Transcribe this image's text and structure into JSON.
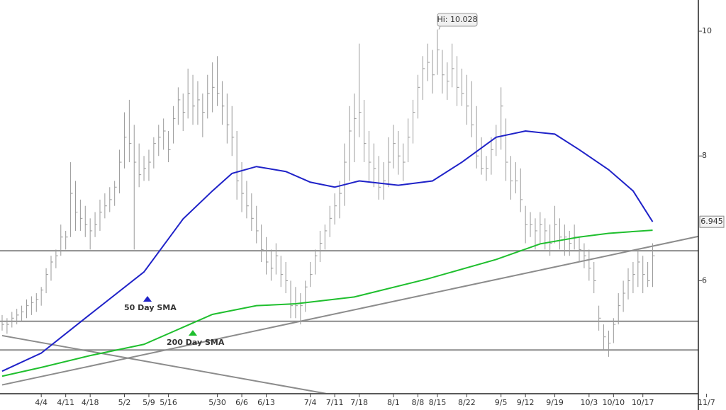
{
  "chart_data": {
    "type": "ohlc",
    "ylim": [
      4.2,
      10.5
    ],
    "yticks": [
      6,
      8,
      10
    ],
    "xlim": [
      0,
      148
    ],
    "xticks": [
      {
        "value": 8,
        "label": "4/4"
      },
      {
        "value": 13,
        "label": "4/11"
      },
      {
        "value": 18,
        "label": "4/18"
      },
      {
        "value": 25,
        "label": "5/2"
      },
      {
        "value": 30,
        "label": "5/9"
      },
      {
        "value": 34,
        "label": "5/16"
      },
      {
        "value": 44,
        "label": "5/30"
      },
      {
        "value": 49,
        "label": "6/6"
      },
      {
        "value": 54,
        "label": "6/13"
      },
      {
        "value": 63,
        "label": "7/4"
      },
      {
        "value": 68,
        "label": "7/11"
      },
      {
        "value": 73,
        "label": "7/18"
      },
      {
        "value": 80,
        "label": "8/1"
      },
      {
        "value": 85,
        "label": "8/8"
      },
      {
        "value": 89,
        "label": "8/15"
      },
      {
        "value": 95,
        "label": "8/22"
      },
      {
        "value": 102,
        "label": "9/5"
      },
      {
        "value": 107,
        "label": "9/12"
      },
      {
        "value": 113,
        "label": "9/19"
      },
      {
        "value": 120,
        "label": "10/3"
      },
      {
        "value": 125,
        "label": "10/10"
      },
      {
        "value": 131,
        "label": "10/17"
      },
      {
        "value": 144,
        "label": "11/7"
      }
    ],
    "bar_color": "#9a9a9a",
    "high": [
      5.45,
      5.4,
      5.5,
      5.55,
      5.6,
      5.7,
      5.75,
      5.8,
      5.9,
      6.2,
      6.4,
      6.5,
      6.9,
      6.8,
      7.9,
      7.6,
      7.3,
      7.2,
      7.0,
      7.1,
      7.3,
      7.4,
      7.5,
      7.6,
      8.1,
      8.7,
      8.9,
      8.5,
      8.2,
      8.0,
      8.1,
      8.3,
      8.5,
      8.6,
      8.4,
      8.8,
      9.1,
      9.0,
      9.4,
      9.3,
      9.2,
      9.0,
      9.3,
      9.5,
      9.6,
      9.2,
      9.0,
      8.8,
      8.4,
      7.9,
      7.6,
      7.4,
      7.2,
      6.9,
      6.7,
      6.5,
      6.6,
      6.4,
      6.3,
      6.0,
      5.9,
      5.8,
      6.0,
      6.3,
      6.5,
      6.8,
      6.9,
      7.2,
      7.4,
      7.6,
      8.2,
      8.8,
      9.0,
      9.8,
      8.9,
      8.4,
      8.2,
      8.0,
      7.9,
      8.3,
      8.5,
      8.4,
      8.2,
      8.6,
      8.9,
      9.3,
      9.6,
      9.8,
      9.7,
      10.028,
      9.7,
      9.5,
      9.8,
      9.6,
      9.4,
      9.3,
      9.2,
      8.8,
      8.3,
      8.0,
      8.3,
      8.5,
      9.1,
      8.6,
      8.0,
      7.9,
      7.8,
      7.2,
      7.1,
      7.0,
      7.1,
      7.0,
      6.9,
      7.2,
      7.0,
      6.9,
      6.8,
      6.9,
      6.7,
      6.6,
      6.5,
      6.3,
      5.6,
      5.3,
      5.2,
      5.4,
      5.8,
      6.0,
      6.2,
      6.3,
      6.5,
      6.4,
      6.3,
      6.6
    ],
    "low": [
      5.2,
      5.15,
      5.25,
      5.3,
      5.35,
      5.4,
      5.45,
      5.5,
      5.6,
      5.8,
      6.0,
      6.2,
      6.4,
      6.5,
      6.7,
      6.8,
      6.8,
      6.7,
      6.5,
      6.7,
      6.8,
      7.0,
      7.1,
      7.2,
      7.4,
      7.8,
      7.9,
      6.5,
      7.5,
      7.6,
      7.6,
      7.8,
      8.0,
      8.1,
      7.9,
      8.2,
      8.5,
      8.4,
      8.6,
      8.5,
      8.5,
      8.3,
      8.6,
      8.7,
      8.8,
      8.5,
      8.2,
      8.0,
      7.3,
      7.1,
      7.0,
      6.8,
      6.6,
      6.3,
      6.1,
      6.0,
      6.1,
      5.9,
      5.8,
      5.4,
      5.4,
      5.3,
      5.5,
      5.9,
      6.1,
      6.3,
      6.5,
      6.7,
      6.9,
      7.0,
      7.2,
      7.6,
      7.9,
      8.3,
      7.9,
      7.6,
      7.5,
      7.3,
      7.3,
      7.5,
      7.8,
      7.7,
      7.6,
      7.9,
      8.2,
      8.6,
      8.9,
      9.2,
      9.0,
      9.3,
      9.0,
      8.9,
      9.1,
      8.8,
      8.8,
      8.5,
      8.3,
      7.8,
      7.7,
      7.6,
      7.7,
      8.0,
      8.1,
      7.6,
      7.3,
      7.4,
      7.1,
      6.6,
      6.7,
      6.5,
      6.6,
      6.5,
      6.4,
      6.6,
      6.5,
      6.4,
      6.4,
      6.5,
      6.3,
      6.2,
      6.0,
      5.8,
      5.2,
      4.9,
      4.78,
      5.0,
      5.3,
      5.5,
      5.7,
      5.8,
      5.9,
      5.8,
      5.9,
      5.9
    ],
    "close": [
      5.3,
      5.3,
      5.4,
      5.45,
      5.5,
      5.6,
      5.65,
      5.7,
      5.85,
      6.1,
      6.3,
      6.4,
      6.7,
      6.7,
      7.4,
      7.1,
      7.0,
      6.9,
      6.8,
      6.9,
      7.1,
      7.2,
      7.3,
      7.5,
      7.9,
      8.3,
      8.2,
      7.9,
      7.7,
      7.8,
      7.9,
      8.2,
      8.3,
      8.4,
      8.1,
      8.6,
      8.9,
      8.7,
      9.0,
      8.8,
      8.9,
      8.7,
      9.0,
      9.1,
      9.0,
      8.8,
      8.5,
      8.3,
      7.6,
      7.4,
      7.2,
      7.0,
      6.8,
      6.5,
      6.3,
      6.2,
      6.4,
      6.1,
      6.0,
      5.6,
      5.6,
      5.6,
      5.9,
      6.1,
      6.4,
      6.6,
      6.8,
      7.0,
      7.2,
      7.4,
      7.9,
      8.4,
      8.6,
      8.7,
      8.2,
      7.9,
      7.8,
      7.5,
      7.6,
      7.9,
      8.2,
      8.0,
      7.9,
      8.3,
      8.7,
      9.1,
      9.4,
      9.5,
      9.3,
      9.7,
      9.3,
      9.2,
      9.4,
      9.1,
      9.0,
      8.8,
      8.5,
      8.0,
      7.8,
      7.8,
      8.1,
      8.3,
      8.8,
      7.9,
      7.6,
      7.6,
      7.3,
      6.9,
      6.9,
      6.8,
      6.9,
      6.8,
      6.6,
      6.9,
      6.7,
      6.7,
      6.6,
      6.7,
      6.5,
      6.4,
      6.2,
      6.0,
      5.4,
      5.1,
      5.0,
      5.3,
      5.6,
      5.8,
      6.0,
      6.1,
      6.3,
      6.1,
      6.0,
      6.4
    ],
    "sma": [
      {
        "name": "50 Day SMA",
        "color": "#1f22c8",
        "x": [
          0,
          8,
          17,
          29,
          37,
          43,
          47,
          52,
          58,
          63,
          68,
          73,
          81,
          88,
          94,
          101,
          107,
          113,
          118,
          124,
          129,
          133
        ],
        "values": [
          4.55,
          4.84,
          5.4,
          6.14,
          6.99,
          7.44,
          7.72,
          7.83,
          7.75,
          7.58,
          7.5,
          7.6,
          7.53,
          7.6,
          7.9,
          8.3,
          8.4,
          8.35,
          8.1,
          7.78,
          7.44,
          6.945
        ]
      },
      {
        "name": "200 Day SMA",
        "color": "#1fbf2e",
        "x": [
          0,
          8,
          18,
          29,
          43,
          52,
          60,
          72,
          87,
          101,
          110,
          118,
          124,
          133
        ],
        "values": [
          4.47,
          4.61,
          4.8,
          4.98,
          5.46,
          5.6,
          5.63,
          5.74,
          6.03,
          6.34,
          6.59,
          6.7,
          6.76,
          6.81
        ]
      }
    ],
    "annotations": [
      {
        "text": "Hi: 10.028"
      }
    ],
    "line_color": "#8c8c8c",
    "hlines": [
      6.48,
      5.35,
      4.89
    ],
    "trendlines": [
      {
        "x": [
          0,
          142.3
        ],
        "values": [
          4.33,
          6.71
        ]
      },
      {
        "x": [
          0,
          67
        ],
        "values": [
          5.12,
          4.18
        ]
      }
    ]
  }
}
